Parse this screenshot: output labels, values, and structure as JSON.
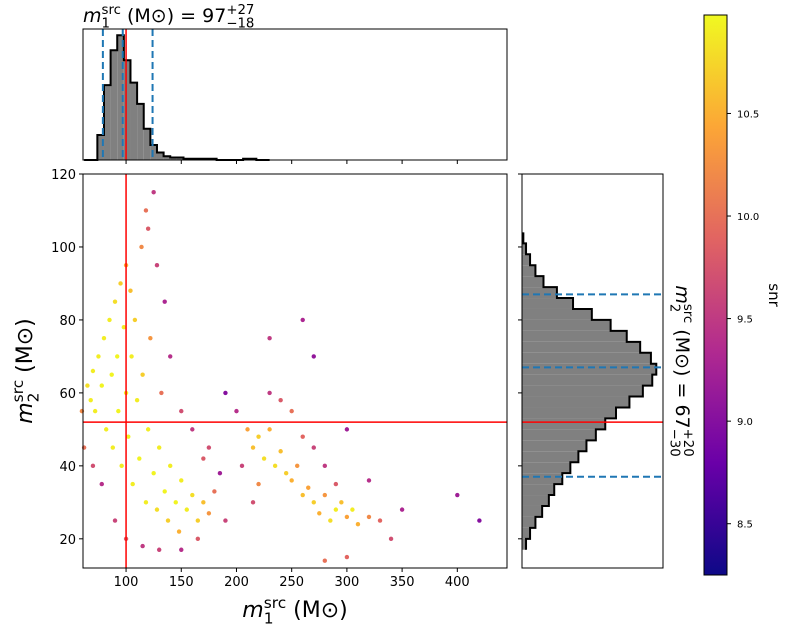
{
  "chart_data": [
    {
      "type": "scatter",
      "xlabel": {
        "symbol": "m",
        "sup": "src",
        "sub": "1",
        "unit": " (M⊙)"
      },
      "ylabel": {
        "symbol": "m",
        "sup": "src",
        "sub": "2",
        "unit": " (M⊙)"
      },
      "xlim": [
        61,
        445
      ],
      "ylim": [
        12,
        120
      ],
      "xticks": [
        100,
        150,
        200,
        250,
        300,
        350,
        400
      ],
      "yticks": [
        20,
        40,
        60,
        80,
        100,
        120
      ],
      "truth": {
        "x": 100,
        "y": 52
      },
      "truth_color": "#ff0000",
      "x": [
        65,
        68,
        70,
        72,
        75,
        78,
        80,
        82,
        85,
        87,
        88,
        90,
        92,
        93,
        95,
        96,
        98,
        100,
        100,
        102,
        104,
        105,
        106,
        108,
        110,
        112,
        114,
        115,
        118,
        120,
        122,
        125,
        128,
        130,
        132,
        135,
        138,
        140,
        145,
        148,
        150,
        155,
        160,
        165,
        170,
        175,
        180,
        120,
        125,
        118,
        128,
        135,
        140,
        150,
        160,
        170,
        60,
        62,
        70,
        78,
        90,
        100,
        115,
        130,
        150,
        165,
        185,
        190,
        210,
        215,
        220,
        225,
        230,
        235,
        240,
        245,
        250,
        255,
        260,
        265,
        270,
        275,
        280,
        285,
        290,
        295,
        300,
        305,
        310,
        320,
        330,
        240,
        250,
        230,
        220,
        260,
        270,
        280,
        290,
        200,
        205,
        215,
        260,
        270,
        230,
        300,
        320,
        350,
        400,
        420,
        340,
        300,
        280,
        190,
        175
      ],
      "y": [
        62,
        58,
        66,
        55,
        70,
        62,
        75,
        50,
        80,
        65,
        45,
        85,
        70,
        55,
        90,
        40,
        78,
        95,
        60,
        48,
        88,
        70,
        35,
        80,
        58,
        42,
        100,
        65,
        30,
        50,
        75,
        38,
        28,
        45,
        60,
        33,
        25,
        40,
        30,
        22,
        36,
        28,
        32,
        25,
        30,
        27,
        33,
        105,
        115,
        110,
        95,
        85,
        70,
        55,
        50,
        42,
        55,
        45,
        40,
        35,
        25,
        20,
        18,
        17,
        17,
        20,
        38,
        25,
        50,
        45,
        48,
        42,
        50,
        40,
        44,
        38,
        36,
        40,
        32,
        34,
        30,
        27,
        32,
        25,
        28,
        30,
        26,
        28,
        24,
        26,
        25,
        58,
        55,
        60,
        35,
        48,
        45,
        40,
        35,
        55,
        40,
        30,
        80,
        70,
        75,
        50,
        36,
        28,
        32,
        25,
        20,
        15,
        14,
        60,
        45
      ],
      "snr": [
        10.8,
        10.9,
        10.9,
        10.9,
        10.9,
        10.95,
        10.9,
        10.9,
        10.9,
        10.95,
        10.9,
        10.8,
        10.95,
        10.95,
        10.7,
        10.9,
        10.9,
        10.5,
        10.95,
        10.95,
        10.6,
        10.9,
        10.9,
        10.7,
        10.9,
        10.95,
        10.2,
        10.7,
        10.9,
        10.9,
        10.3,
        10.95,
        10.8,
        10.9,
        10.0,
        10.95,
        10.7,
        10.9,
        10.95,
        10.5,
        10.9,
        10.9,
        10.8,
        10.7,
        10.6,
        10.3,
        10.0,
        9.8,
        9.5,
        10.0,
        9.6,
        9.3,
        9.4,
        9.7,
        9.5,
        9.8,
        10.2,
        10.0,
        9.7,
        9.4,
        9.6,
        9.8,
        9.5,
        9.6,
        9.4,
        9.8,
        9.2,
        9.6,
        10.4,
        10.6,
        10.7,
        10.8,
        10.5,
        10.8,
        10.6,
        10.7,
        10.5,
        10.3,
        10.6,
        10.4,
        10.7,
        10.5,
        10.3,
        10.8,
        10.9,
        10.6,
        10.4,
        10.9,
        10.5,
        10.2,
        9.9,
        9.8,
        10.0,
        9.5,
        10.2,
        9.9,
        9.6,
        9.5,
        9.8,
        9.4,
        9.6,
        9.7,
        9.3,
        9.1,
        9.5,
        9.2,
        9.4,
        9.3,
        9.2,
        9.0,
        9.7,
        9.9,
        10.0,
        9.0,
        9.7
      ],
      "colorbar": {
        "label": "snr",
        "lim": [
          8.25,
          10.98
        ],
        "ticks": [
          8.5,
          {
            "value": 9,
            "label": "9.0"
          },
          9.5,
          {
            "value": 10,
            "label": "10.0"
          },
          10.5
        ]
      }
    },
    {
      "type": "histogram",
      "orientation": "vertical",
      "title": {
        "symbol": "m",
        "sup": "src",
        "sub": "1",
        "unit": " (M⊙) = ",
        "value": "97",
        "upper": "+27",
        "lower": "−18"
      },
      "bins": [
        62,
        68,
        74,
        80,
        86,
        92,
        98,
        104,
        110,
        116,
        122,
        128,
        134,
        140,
        146,
        152,
        158,
        164,
        170,
        176,
        182,
        188,
        194,
        200,
        206,
        212,
        218,
        224,
        230
      ],
      "counts": [
        0,
        0,
        20,
        60,
        88,
        100,
        80,
        62,
        45,
        25,
        12,
        6,
        3,
        2,
        2,
        1,
        1,
        1,
        1,
        1,
        0,
        0,
        0,
        0,
        1,
        1,
        0,
        0
      ],
      "ylim": [
        0,
        105
      ],
      "quantiles": [
        79,
        97,
        124
      ],
      "color": "#808080",
      "quantile_color": "#1f77b4"
    },
    {
      "type": "histogram",
      "orientation": "horizontal",
      "title": {
        "symbol": "m",
        "sup": "src",
        "sub": "2",
        "unit": " (M⊙) = ",
        "value": "67",
        "upper": "+20",
        "lower": "−30"
      },
      "bins": [
        17,
        20,
        23,
        26,
        29,
        32,
        35,
        38,
        41,
        44,
        47,
        50,
        53,
        56,
        59,
        62,
        65,
        68,
        71,
        74,
        77,
        80,
        83,
        86,
        89,
        92,
        95,
        98,
        101,
        104
      ],
      "counts": [
        3,
        6,
        10,
        15,
        20,
        24,
        30,
        36,
        42,
        48,
        55,
        62,
        70,
        80,
        90,
        97,
        100,
        96,
        88,
        78,
        66,
        52,
        38,
        26,
        16,
        10,
        6,
        3,
        1
      ],
      "xlim": [
        0,
        105
      ],
      "quantiles": [
        37,
        67,
        87
      ],
      "color": "#808080",
      "quantile_color": "#1f77b4"
    }
  ]
}
